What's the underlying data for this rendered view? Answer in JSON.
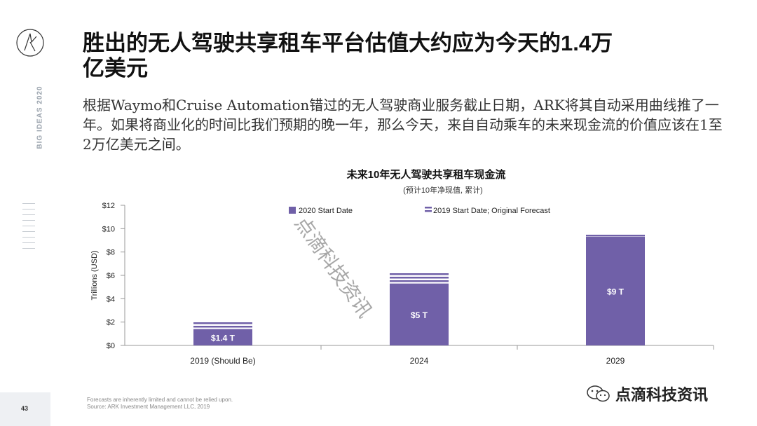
{
  "brand": {
    "vertical_tag": "BIG IDEAS 2020"
  },
  "header": {
    "title": "胜出的无人驾驶共享租车平台估值大约应为今天的1.4万亿美元",
    "subtitle": "根据Waymo和Cruise Automation错过的无人驾驶商业服务截止日期，ARK将其自动采用曲线推了一年。如果将商业化的时间比我们预期的晚一年，那么今天，来自自动乘车的未来现金流的价值应该在1至2万亿美元之间。"
  },
  "chart_data": {
    "type": "bar",
    "title": "未来10年无人驾驶共享租车现金流",
    "subtitle": "(预计10年净现值, 累计)",
    "ylabel": "Trillions (USD)",
    "xlabel": "",
    "categories": [
      "2019 (Should Be)",
      "2024",
      "2029"
    ],
    "series": [
      {
        "name": "2020 Start Date",
        "values": [
          1.4,
          5.3,
          9.3
        ],
        "color": "#7060a8"
      },
      {
        "name": "2019 Start Date; Original Forecast",
        "values": [
          2.0,
          6.2,
          9.6
        ],
        "color": "#7060a8",
        "pattern": "stripes"
      }
    ],
    "data_labels": [
      "$1.4 T",
      "$5 T",
      "$9 T"
    ],
    "ylim": [
      0,
      12
    ],
    "yticks": [
      "$0",
      "$2",
      "$4",
      "$6",
      "$8",
      "$10",
      "$12"
    ],
    "legend_position": "top"
  },
  "footer": {
    "note_line1": "Forecasts are inherently limited and cannot be relied upon.",
    "note_line2": "Source: ARK Investment Management LLC, 2019",
    "page_number": "43"
  },
  "watermark": {
    "diagonal": "点滴科技资讯",
    "corner": "点滴科技资讯"
  }
}
